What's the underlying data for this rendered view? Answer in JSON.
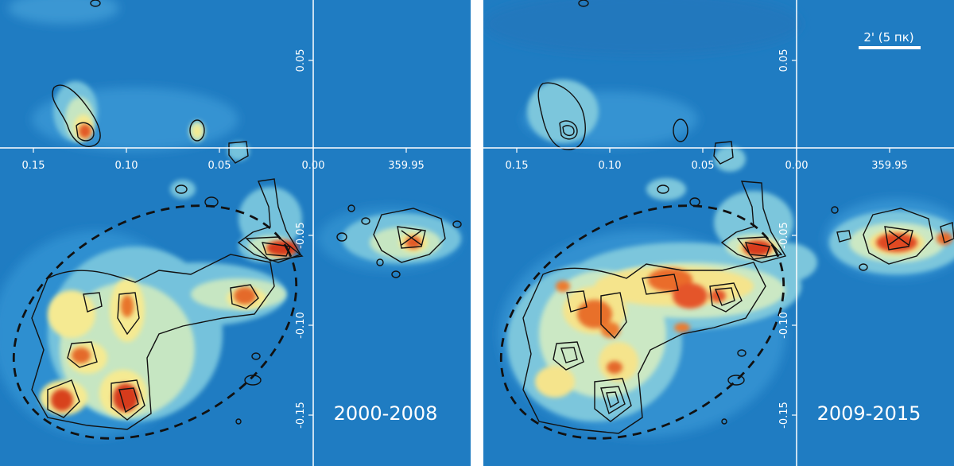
{
  "chart_data": [
    {
      "type": "heatmap",
      "panel": "left",
      "epoch_label": "2000-2008",
      "x_ticks": [
        "0.15",
        "0.10",
        "0.05",
        "0.00",
        "359.95"
      ],
      "y_ticks": [
        "0.05",
        "-0.05",
        "-0.10",
        "-0.15"
      ],
      "grid": true,
      "colormap": [
        "#1c78c0",
        "#2e8fd0",
        "#7cc8dc",
        "#cbe8c4",
        "#f6ee9a",
        "#f4b15b",
        "#e8682a",
        "#d83a1a"
      ]
    },
    {
      "type": "heatmap",
      "panel": "right",
      "epoch_label": "2009-2015",
      "x_ticks": [
        "0.15",
        "0.10",
        "0.05",
        "0.00",
        "359.95"
      ],
      "y_ticks": [
        "0.05",
        "-0.05",
        "-0.10",
        "-0.15"
      ],
      "grid": true,
      "scale_bar_label": "2' (5 пк)",
      "colormap": [
        "#1c78c0",
        "#2e8fd0",
        "#7cc8dc",
        "#cbe8c4",
        "#f6ee9a",
        "#f4b15b",
        "#e8682a",
        "#d83a1a"
      ]
    }
  ]
}
